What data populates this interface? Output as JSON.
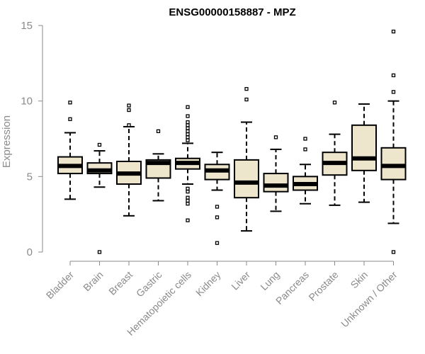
{
  "chart_data": {
    "type": "boxplot",
    "title": "ENSG00000158887 - MPZ",
    "xlabel": "",
    "ylabel": "Expression",
    "ylim": [
      0,
      15
    ],
    "yticks": [
      0,
      5,
      10,
      15
    ],
    "box_fill": "#ede6cd",
    "categories": [
      "Bladder",
      "Brain",
      "Breast",
      "Gastric",
      "Hematopoietic cells",
      "Kidney",
      "Liver",
      "Lung",
      "Pancreas",
      "Prostate",
      "Skin",
      "Unknown / Other"
    ],
    "boxes": [
      {
        "category": "Bladder",
        "whisker_low": 3.5,
        "q1": 5.2,
        "median": 5.7,
        "q3": 6.3,
        "whisker_high": 7.9,
        "outliers": [
          8.8,
          9.9
        ]
      },
      {
        "category": "Brain",
        "whisker_low": 4.3,
        "q1": 5.2,
        "median": 5.4,
        "q3": 5.9,
        "whisker_high": 6.7,
        "outliers": [
          7.1,
          0.0
        ]
      },
      {
        "category": "Breast",
        "whisker_low": 2.4,
        "q1": 4.5,
        "median": 5.2,
        "q3": 6.0,
        "whisker_high": 8.3,
        "outliers": [
          8.4,
          9.4,
          9.7
        ]
      },
      {
        "category": "Gastric",
        "whisker_low": 3.4,
        "q1": 4.9,
        "median": 5.9,
        "q3": 6.1,
        "whisker_high": 6.5,
        "outliers": [
          8.0
        ]
      },
      {
        "category": "Hematopoietic cells",
        "whisker_low": 4.5,
        "q1": 5.5,
        "median": 5.9,
        "q3": 6.2,
        "whisker_high": 7.2,
        "outliers": [
          7.4,
          7.6,
          7.8,
          8.0,
          8.2,
          8.4,
          8.6,
          9.0,
          9.6,
          4.2,
          4.0,
          3.6,
          3.4,
          3.2,
          2.1
        ]
      },
      {
        "category": "Kidney",
        "whisker_low": 4.1,
        "q1": 4.8,
        "median": 5.4,
        "q3": 5.8,
        "whisker_high": 6.6,
        "outliers": [
          3.0,
          2.3,
          0.6
        ]
      },
      {
        "category": "Liver",
        "whisker_low": 1.4,
        "q1": 3.6,
        "median": 4.6,
        "q3": 6.1,
        "whisker_high": 8.6,
        "outliers": [
          10.1,
          10.8
        ]
      },
      {
        "category": "Lung",
        "whisker_low": 2.7,
        "q1": 4.0,
        "median": 4.4,
        "q3": 5.2,
        "whisker_high": 6.8,
        "outliers": [
          7.6
        ]
      },
      {
        "category": "Pancreas",
        "whisker_low": 3.2,
        "q1": 4.1,
        "median": 4.5,
        "q3": 5.0,
        "whisker_high": 5.8,
        "outliers": [
          6.8,
          7.5
        ]
      },
      {
        "category": "Prostate",
        "whisker_low": 3.1,
        "q1": 5.1,
        "median": 5.9,
        "q3": 6.6,
        "whisker_high": 7.8,
        "outliers": [
          9.9
        ]
      },
      {
        "category": "Skin",
        "whisker_low": 3.3,
        "q1": 5.4,
        "median": 6.2,
        "q3": 8.4,
        "whisker_high": 9.8,
        "outliers": []
      },
      {
        "category": "Unknown / Other",
        "whisker_low": 1.9,
        "q1": 4.8,
        "median": 5.7,
        "q3": 6.9,
        "whisker_high": 10.0,
        "outliers": [
          10.6,
          11.7,
          14.6,
          0.0
        ]
      }
    ]
  }
}
